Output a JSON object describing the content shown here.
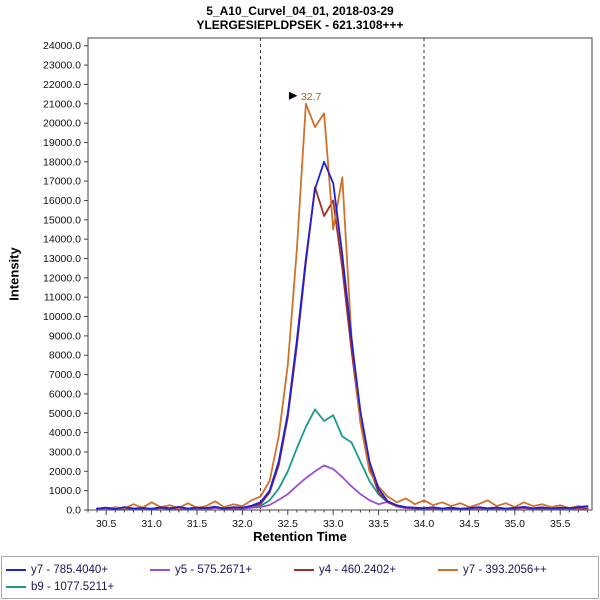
{
  "chart_data": {
    "type": "line",
    "title": "5_A10_Curvel_04_01, 2018-03-29",
    "subtitle": "YLERGESIEPLDPSEK - 621.3108+++",
    "xlabel": "Retention Time",
    "ylabel": "Intensity",
    "xlim": [
      30.3,
      35.85
    ],
    "ylim": [
      0,
      24400
    ],
    "xticks": [
      30.5,
      31.0,
      31.5,
      32.0,
      32.5,
      33.0,
      33.5,
      34.0,
      34.5,
      35.0,
      35.5
    ],
    "yticks": [
      0,
      1000,
      2000,
      3000,
      4000,
      5000,
      6000,
      7000,
      8000,
      9000,
      10000,
      11000,
      12000,
      13000,
      14000,
      15000,
      16000,
      17000,
      18000,
      19000,
      20000,
      21000,
      22000,
      23000,
      24000
    ],
    "grid": false,
    "legend_position": "bottom",
    "integration_boundaries": [
      32.2,
      34.0
    ],
    "peak_annotation": {
      "label": "32.7",
      "x": 32.7,
      "y": 21000,
      "text_color": "#b35c22",
      "arrow_color": "#000000"
    },
    "colors": {
      "axis": "#444444",
      "tick_label": "#111111",
      "boundary_line": "#333333",
      "legend_text": "#18185e"
    },
    "x": [
      30.4,
      30.5,
      30.6,
      30.7,
      30.8,
      30.9,
      31.0,
      31.1,
      31.2,
      31.3,
      31.4,
      31.5,
      31.6,
      31.7,
      31.8,
      31.9,
      32.0,
      32.1,
      32.2,
      32.3,
      32.4,
      32.5,
      32.6,
      32.7,
      32.8,
      32.9,
      33.0,
      33.1,
      33.2,
      33.3,
      33.4,
      33.5,
      33.6,
      33.7,
      33.8,
      33.9,
      34.0,
      34.1,
      34.2,
      34.3,
      34.4,
      34.5,
      34.6,
      34.7,
      34.8,
      34.9,
      35.0,
      35.1,
      35.2,
      35.3,
      35.4,
      35.5,
      35.6,
      35.7,
      35.8
    ],
    "series": [
      {
        "name": "y7 - 785.4040+",
        "color": "#2121d3",
        "values": [
          60,
          120,
          40,
          150,
          80,
          110,
          60,
          140,
          90,
          160,
          70,
          130,
          100,
          170,
          80,
          150,
          120,
          220,
          400,
          1000,
          2500,
          5000,
          8800,
          13000,
          16600,
          18000,
          16900,
          13200,
          8900,
          5100,
          2500,
          1100,
          450,
          250,
          150,
          120,
          100,
          140,
          80,
          120,
          60,
          100,
          150,
          90,
          130,
          70,
          110,
          160,
          90,
          140,
          80,
          120,
          100,
          150,
          200
        ]
      },
      {
        "name": "y5 - 575.2671+",
        "color": "#9b4fd6",
        "values": [
          40,
          80,
          30,
          90,
          50,
          70,
          40,
          100,
          60,
          80,
          50,
          90,
          40,
          110,
          60,
          80,
          70,
          120,
          150,
          260,
          520,
          820,
          1250,
          1650,
          2000,
          2300,
          2120,
          1700,
          1230,
          820,
          500,
          300,
          420,
          180,
          100,
          80,
          60,
          90,
          50,
          80,
          40,
          70,
          90,
          50,
          80,
          40,
          70,
          100,
          50,
          80,
          40,
          70,
          50,
          90,
          60
        ]
      },
      {
        "name": "y4 - 460.2402+",
        "color": "#a0302a",
        "values": [
          70,
          110,
          50,
          130,
          80,
          100,
          60,
          120,
          80,
          140,
          70,
          120,
          90,
          150,
          80,
          130,
          110,
          200,
          300,
          900,
          2300,
          4800,
          8500,
          12800,
          16700,
          15200,
          16000,
          12500,
          8300,
          4600,
          2200,
          900,
          400,
          200,
          130,
          100,
          90,
          120,
          70,
          110,
          60,
          100,
          130,
          80,
          120,
          70,
          100,
          140,
          80,
          120,
          70,
          110,
          90,
          130,
          100
        ]
      },
      {
        "name": "y7 - 393.2056++",
        "color": "#cf7228",
        "values": [
          100,
          50,
          150,
          80,
          300,
          120,
          400,
          150,
          250,
          100,
          350,
          120,
          200,
          450,
          150,
          300,
          200,
          500,
          700,
          1500,
          3800,
          7500,
          13500,
          21000,
          19800,
          20500,
          14500,
          17200,
          9000,
          4500,
          2000,
          1200,
          700,
          400,
          600,
          300,
          500,
          250,
          400,
          200,
          350,
          150,
          300,
          500,
          200,
          350,
          150,
          400,
          200,
          300,
          150,
          250,
          100,
          200,
          150
        ]
      },
      {
        "name": "b9 - 1077.5211+",
        "color": "#1b9a8d",
        "values": [
          50,
          90,
          40,
          100,
          60,
          80,
          50,
          110,
          70,
          90,
          50,
          100,
          60,
          120,
          70,
          90,
          80,
          150,
          200,
          500,
          1100,
          2000,
          3200,
          4300,
          5200,
          4600,
          4900,
          3800,
          3500,
          2500,
          1500,
          800,
          400,
          200,
          120,
          90,
          70,
          100,
          60,
          90,
          50,
          80,
          110,
          60,
          90,
          50,
          80,
          120,
          60,
          90,
          50,
          80,
          60,
          100,
          70
        ]
      }
    ]
  }
}
